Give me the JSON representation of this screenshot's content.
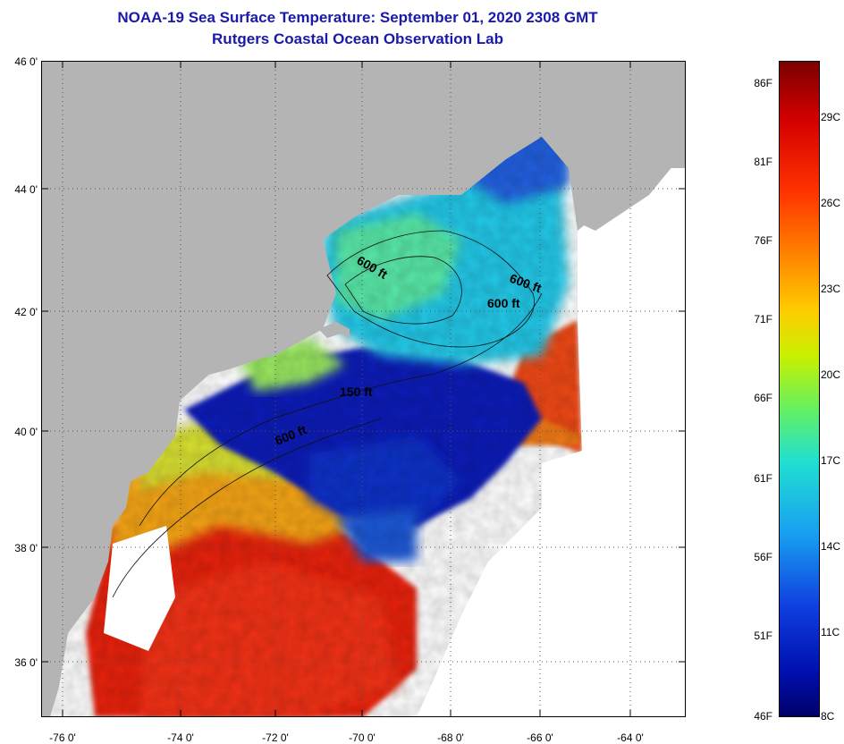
{
  "title": {
    "line1": "NOAA-19 Sea Surface Temperature:  September 01, 2020 2308 GMT",
    "line2": "Rutgers Coastal Ocean Observation Lab"
  },
  "axes": {
    "lat_labels": [
      "46 0'",
      "44 0'",
      "42 0'",
      "40 0'",
      "38 0'",
      "36 0'"
    ],
    "lon_labels": [
      "-76 0'",
      "-74 0'",
      "-72 0'",
      "-70 0'",
      "-68 0'",
      "-66 0'",
      "-64 0'"
    ]
  },
  "contours": [
    "600 ft",
    "600 ft",
    "600 ft",
    "150 ft",
    "600 ft"
  ],
  "colorbar": {
    "fahrenheit": [
      "86F",
      "81F",
      "76F",
      "71F",
      "66F",
      "61F",
      "56F",
      "51F",
      "46F"
    ],
    "celsius": [
      "29C",
      "26C",
      "23C",
      "20C",
      "17C",
      "14C",
      "11C",
      "8C"
    ],
    "colors": [
      "#7a0000",
      "#d40000",
      "#ff3300",
      "#ff8800",
      "#ffcc00",
      "#c8f000",
      "#66f060",
      "#20e0d0",
      "#18a0f0",
      "#1040e0",
      "#0010b0",
      "#00006a"
    ]
  },
  "colors": {
    "land": "#b4b4b4",
    "ocean_cold": "#0a1ab8",
    "ocean_cool": "#22b8f0",
    "ocean_mid": "#50e8b0",
    "ocean_warm": "#f0e020",
    "ocean_hot": "#f08010",
    "ocean_hottest": "#e62010",
    "no_data": "#ffffff",
    "title": "#1a1aa8"
  }
}
